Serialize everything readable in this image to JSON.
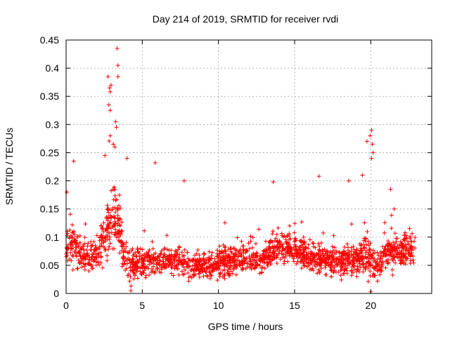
{
  "chart_data": {
    "type": "scatter",
    "title": "Day 214 of 2019, SRMTID for receiver rvdi",
    "xlabel": "GPS time / hours",
    "ylabel": "SRMTID / TECUs",
    "xlim": [
      0,
      24
    ],
    "ylim": [
      0,
      0.45
    ],
    "xticks": [
      0,
      5,
      10,
      15,
      20
    ],
    "xtick_labels": [
      "0",
      "5",
      "10",
      "15",
      "20"
    ],
    "yticks": [
      0,
      0.05,
      0.1,
      0.15,
      0.2,
      0.25,
      0.3,
      0.35,
      0.4,
      0.45
    ],
    "ytick_labels": [
      "0",
      "0.05",
      "0.1",
      "0.15",
      "0.2",
      "0.25",
      "0.3",
      "0.35",
      "0.4",
      "0.45"
    ],
    "grid": true,
    "marker": "+",
    "color": "#ff0000",
    "data_x_range": [
      0,
      22.9
    ],
    "n_points": 2600,
    "envelope": {
      "x": [
        0,
        0.5,
        1.0,
        1.5,
        2.0,
        2.5,
        2.9,
        3.2,
        3.5,
        3.8,
        4.2,
        5,
        6,
        7,
        8,
        9,
        10,
        11,
        12,
        13,
        13.5,
        14,
        15,
        16,
        17,
        18,
        19,
        19.5,
        20,
        20.5,
        21,
        22,
        22.9
      ],
      "center": [
        0.085,
        0.085,
        0.07,
        0.065,
        0.075,
        0.1,
        0.13,
        0.14,
        0.11,
        0.07,
        0.05,
        0.055,
        0.06,
        0.06,
        0.05,
        0.05,
        0.055,
        0.06,
        0.06,
        0.06,
        0.08,
        0.085,
        0.08,
        0.065,
        0.06,
        0.055,
        0.06,
        0.075,
        0.06,
        0.045,
        0.075,
        0.075,
        0.08
      ],
      "spread": [
        0.035,
        0.04,
        0.035,
        0.035,
        0.04,
        0.05,
        0.07,
        0.075,
        0.06,
        0.04,
        0.035,
        0.03,
        0.03,
        0.028,
        0.028,
        0.028,
        0.03,
        0.03,
        0.03,
        0.03,
        0.035,
        0.035,
        0.035,
        0.032,
        0.03,
        0.03,
        0.035,
        0.045,
        0.04,
        0.035,
        0.035,
        0.035,
        0.035
      ]
    },
    "notable_points": [
      {
        "x": 3.35,
        "y": 0.435
      },
      {
        "x": 3.4,
        "y": 0.405
      },
      {
        "x": 3.4,
        "y": 0.385
      },
      {
        "x": 2.75,
        "y": 0.385
      },
      {
        "x": 2.85,
        "y": 0.365
      },
      {
        "x": 2.9,
        "y": 0.358
      },
      {
        "x": 2.95,
        "y": 0.37
      },
      {
        "x": 2.8,
        "y": 0.335
      },
      {
        "x": 2.9,
        "y": 0.325
      },
      {
        "x": 3.25,
        "y": 0.305
      },
      {
        "x": 3.3,
        "y": 0.295
      },
      {
        "x": 3.1,
        "y": 0.265
      },
      {
        "x": 3.2,
        "y": 0.26
      },
      {
        "x": 2.55,
        "y": 0.245
      },
      {
        "x": 2.9,
        "y": 0.28
      },
      {
        "x": 0.5,
        "y": 0.235
      },
      {
        "x": 5.85,
        "y": 0.232
      },
      {
        "x": 4.0,
        "y": 0.24
      },
      {
        "x": 20.05,
        "y": 0.29
      },
      {
        "x": 19.95,
        "y": 0.28
      },
      {
        "x": 20.1,
        "y": 0.265
      },
      {
        "x": 20.15,
        "y": 0.25
      },
      {
        "x": 20.05,
        "y": 0.24
      },
      {
        "x": 19.75,
        "y": 0.27
      },
      {
        "x": 13.6,
        "y": 0.198
      },
      {
        "x": 16.6,
        "y": 0.208
      },
      {
        "x": 7.75,
        "y": 0.2
      },
      {
        "x": 18.55,
        "y": 0.2
      },
      {
        "x": 19.45,
        "y": 0.21
      },
      {
        "x": 21.3,
        "y": 0.185
      },
      {
        "x": 0.05,
        "y": 0.18
      },
      {
        "x": 4.25,
        "y": 0.005
      },
      {
        "x": 20.0,
        "y": 0.003
      }
    ]
  }
}
